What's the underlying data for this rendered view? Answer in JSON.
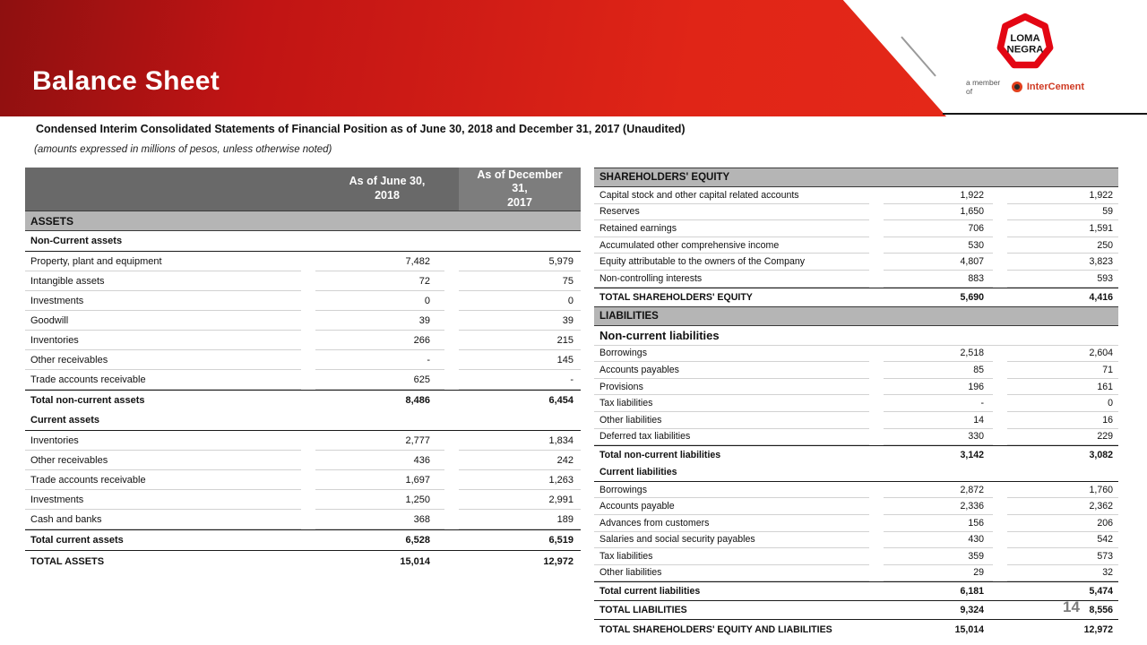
{
  "slide": {
    "title": "Balance Sheet",
    "subtitle": "Condensed Interim Consolidated Statements of Financial Position as of June 30, 2018 and December 31, 2017 (Unaudited)",
    "note": "(amounts expressed in millions of pesos, unless otherwise noted)",
    "page_number": "14"
  },
  "logo": {
    "line1": "LOMA",
    "line2": "NEGRA",
    "member_text": "a member of",
    "member_brand": "InterCement"
  },
  "colors": {
    "banner_red_dark": "#8e1010",
    "banner_red": "#e02517",
    "table_header_gray": "#696969",
    "section_gray": "#b5b5b5",
    "logo_red": "#e30613",
    "intercement_red": "#cf3a23"
  },
  "assets_table": {
    "col1_header": "As of June 30,\n2018",
    "col2_header": "As of December\n31,\n2017",
    "section_title": "ASSETS",
    "rows": [
      {
        "label": "Non-Current  assets",
        "v1": "",
        "v2": "",
        "type": "section"
      },
      {
        "label": "Property, plant and equipment",
        "v1": "7,482",
        "v2": "5,979",
        "type": "data"
      },
      {
        "label": "Intangible assets",
        "v1": "72",
        "v2": "75",
        "type": "data"
      },
      {
        "label": "Investments",
        "v1": "0",
        "v2": "0",
        "type": "data"
      },
      {
        "label": "Goodwill",
        "v1": "39",
        "v2": "39",
        "type": "data"
      },
      {
        "label": "Inventories",
        "v1": "266",
        "v2": "215",
        "type": "data"
      },
      {
        "label": "Other receivables",
        "v1": "-",
        "v2": "145",
        "type": "data"
      },
      {
        "label": "Trade accounts receivable",
        "v1": "625",
        "v2": "-",
        "type": "data"
      },
      {
        "label": "Total non-current  assets",
        "v1": "8,486",
        "v2": "6,454",
        "type": "total"
      },
      {
        "label": "Current  assets",
        "v1": "",
        "v2": "",
        "type": "section"
      },
      {
        "label": "Inventories",
        "v1": "2,777",
        "v2": "1,834",
        "type": "data"
      },
      {
        "label": "Other receivables",
        "v1": "436",
        "v2": "242",
        "type": "data"
      },
      {
        "label": "Trade accounts receivable",
        "v1": "1,697",
        "v2": "1,263",
        "type": "data"
      },
      {
        "label": "Investments",
        "v1": "1,250",
        "v2": "2,991",
        "type": "data"
      },
      {
        "label": "Cash and banks",
        "v1": "368",
        "v2": "189",
        "type": "data"
      },
      {
        "label": "Total current  assets",
        "v1": "6,528",
        "v2": "6,519",
        "type": "total"
      },
      {
        "label": "TOTAL ASSETS",
        "v1": "15,014",
        "v2": "12,972",
        "type": "grand"
      }
    ]
  },
  "equity_liabilities_table": {
    "rows": [
      {
        "label": "SHAREHOLDERS' EQUITY",
        "v1": "",
        "v2": "",
        "type": "header"
      },
      {
        "label": "Capital stock and other capital related accounts",
        "v1": "1,922",
        "v2": "1,922",
        "type": "data"
      },
      {
        "label": "Reserves",
        "v1": "1,650",
        "v2": "59",
        "type": "data"
      },
      {
        "label": "Retained earnings",
        "v1": "706",
        "v2": "1,591",
        "type": "data"
      },
      {
        "label": "Accumulated other comprehensive income",
        "v1": "530",
        "v2": "250",
        "type": "data"
      },
      {
        "label": "Equity attributable to the owners of the Company",
        "v1": "4,807",
        "v2": "3,823",
        "type": "data"
      },
      {
        "label": "Non-controlling interests",
        "v1": "883",
        "v2": "593",
        "type": "data"
      },
      {
        "label": "TOTAL SHAREHOLDERS' EQUITY",
        "v1": "5,690",
        "v2": "4,416",
        "type": "total"
      },
      {
        "label": "LIABILITIES",
        "v1": "",
        "v2": "",
        "type": "header"
      },
      {
        "label": "Non-current liabilities",
        "v1": "",
        "v2": "",
        "type": "section-big"
      },
      {
        "label": "Borrowings",
        "v1": "2,518",
        "v2": "2,604",
        "type": "data"
      },
      {
        "label": "Accounts payables",
        "v1": "85",
        "v2": "71",
        "type": "data"
      },
      {
        "label": "Provisions",
        "v1": "196",
        "v2": "161",
        "type": "data"
      },
      {
        "label": "Tax liabilities",
        "v1": "-",
        "v2": "0",
        "type": "data"
      },
      {
        "label": "Other liabilities",
        "v1": "14",
        "v2": "16",
        "type": "data"
      },
      {
        "label": "Deferred tax liabilities",
        "v1": "330",
        "v2": "229",
        "type": "data"
      },
      {
        "label": "Total non-current  liabilities",
        "v1": "3,142",
        "v2": "3,082",
        "type": "total"
      },
      {
        "label": "Current  liabilities",
        "v1": "",
        "v2": "",
        "type": "section"
      },
      {
        "label": "Borrowings",
        "v1": "2,872",
        "v2": "1,760",
        "type": "data"
      },
      {
        "label": "Accounts payable",
        "v1": "2,336",
        "v2": "2,362",
        "type": "data"
      },
      {
        "label": "Advances from customers",
        "v1": "156",
        "v2": "206",
        "type": "data"
      },
      {
        "label": "Salaries and social security payables",
        "v1": "430",
        "v2": "542",
        "type": "data"
      },
      {
        "label": "Tax liabilities",
        "v1": "359",
        "v2": "573",
        "type": "data"
      },
      {
        "label": "Other liabilities",
        "v1": "29",
        "v2": "32",
        "type": "data"
      },
      {
        "label": "Total current  liabilities",
        "v1": "6,181",
        "v2": "5,474",
        "type": "total"
      },
      {
        "label": "TOTAL LIABILITIES",
        "v1": "9,324",
        "v2": "8,556",
        "type": "total"
      },
      {
        "label": "TOTAL SHAREHOLDERS' EQUITY AND LIABILITIES",
        "v1": "15,014",
        "v2": "12,972",
        "type": "grand"
      }
    ]
  }
}
